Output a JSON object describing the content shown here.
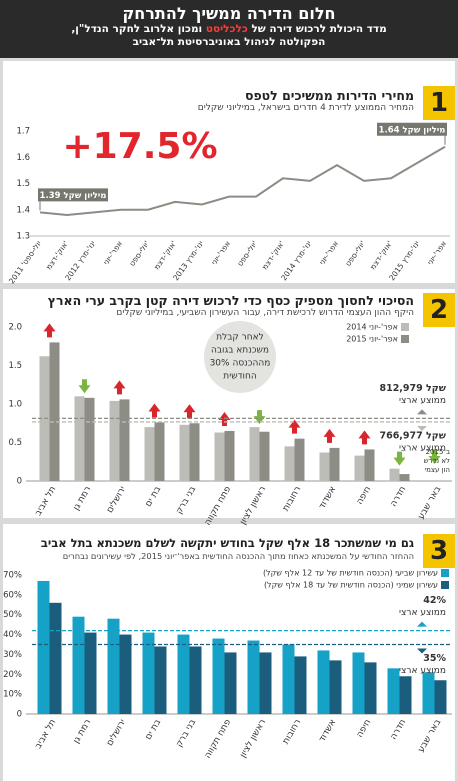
{
  "header": {
    "title": "חלום הדירה ממשיך להתרחק",
    "subtitle_before": "מדד היכולת לרכוש דירה של",
    "subtitle_brand": "כלכליסט",
    "subtitle_after": "ומכון אלרוב לחקר הנדל\"ן,",
    "subtitle_line2": "הפקולטה לניהול באוניברסיטת תל־אביב"
  },
  "chart_data": [
    {
      "type": "line",
      "panel_number": 1,
      "title": "מחירי הדירות ממשיכים לטפס",
      "subtitle": "המחיר הממוצע לדירת 4 חדרים בישראל, במיליוני שקלים",
      "categories": [
        "יולי-ספט' 2011",
        "אוק'-דצמ'",
        "ינו'-מרץ 2012",
        "אפר'-יוני",
        "יולי-ספט'",
        "אוק'-דצמ'",
        "ינו'-מרץ 2013",
        "אפר'-יוני",
        "יולי-ספט'",
        "אוק'-דצמ'",
        "ינו'-מרץ 2014",
        "אפר'-יוני",
        "יולי-ספט'",
        "אוק'-דצמ'",
        "ינו'-מרץ 2015",
        "אפר'-יוני"
      ],
      "values": [
        1.39,
        1.38,
        1.39,
        1.4,
        1.4,
        1.43,
        1.42,
        1.45,
        1.45,
        1.52,
        1.51,
        1.57,
        1.51,
        1.52,
        1.58,
        1.64
      ],
      "value_labels": [
        "1.39 מיליון שקל",
        null,
        null,
        null,
        null,
        null,
        null,
        null,
        null,
        null,
        null,
        null,
        null,
        null,
        null,
        "1.64 מיליון שקל"
      ],
      "color": "#8c8c84",
      "annotation": "+17.5%",
      "ylim": [
        1.3,
        1.7
      ],
      "yticks": [
        1.3,
        1.4,
        1.5,
        1.6,
        1.7
      ],
      "grid": false
    },
    {
      "type": "bar",
      "panel_number": 2,
      "title": "הסיכוי לחסוך מספיק כסף כדי לרכוש דירה קטן בקרב ערי הארץ",
      "subtitle": "היקף ההון העצמי הדרוש לרכישת דירה, עבור העשירון השביעי, במיליוני שקלים",
      "categories": [
        "תל אביב",
        "רמת גן",
        "ירושלים",
        "בת ים",
        "בני ברק",
        "פתח תקווה",
        "ראשון לציון",
        "רחובות",
        "אשדוד",
        "חיפה",
        "חדרה",
        "באר שבע"
      ],
      "series": [
        {
          "name": "אפר'-יוני 2014",
          "color": "#bdbdb7",
          "values": [
            1.62,
            1.1,
            1.04,
            0.7,
            0.73,
            0.63,
            0.7,
            0.45,
            0.37,
            0.33,
            0.16,
            null
          ]
        },
        {
          "name": "אפר'-יוני 2015",
          "color": "#8d8d86",
          "values": [
            1.8,
            1.08,
            1.06,
            0.76,
            0.75,
            0.65,
            0.64,
            0.55,
            0.43,
            0.41,
            0.09,
            null
          ]
        }
      ],
      "reference_lines": [
        {
          "value": 0.812979,
          "label": "812,979 שקל",
          "note": "ממוצע ארצי",
          "color": "#8d8d86"
        },
        {
          "value": 0.766977,
          "label": "766,977 שקל",
          "note": "ממוצע ארצי",
          "color": "#bdbdb7"
        }
      ],
      "callout": [
        "לאחר קבלת",
        "משכנתא בגובה",
        "30% מההכנסה",
        "החודשית"
      ],
      "note": [
        "ב־2015",
        "לא נדרש",
        "הון עצמי"
      ],
      "ylim": [
        0,
        2
      ],
      "yticks": [
        0,
        0.5,
        {
          "value": 1,
          "label": "1.0"
        },
        1.5,
        {
          "value": 2,
          "label": "2.0"
        }
      ],
      "grid": false
    },
    {
      "type": "bar",
      "panel_number": 3,
      "title": "גם מי שמשתכר 18 אלף שקל בחודש יתקשה לשלם משכנתא בתל אביב",
      "subtitle": "ההחזר החודשי על המשכנתא כאחוז מתוך ההכנסה החודשית באפר'־יוני 2015, לפי עשירונים נבחרים",
      "categories": [
        "תל אביב",
        "רמת גן",
        "ירושלים",
        "בת ים",
        "בני ברק",
        "פתח תקווה",
        "ראשון לציון",
        "רחובות",
        "אשדוד",
        "חיפה",
        "חדרה",
        "באר שבע"
      ],
      "series": [
        {
          "name": "עשירון שביעי (הכנסה חודשית של עד 12 אלף שקל)",
          "color": "#15a2c6",
          "values": [
            67,
            49,
            48,
            41,
            40,
            38,
            37,
            35,
            32,
            31,
            23,
            21
          ]
        },
        {
          "name": "עשירון שמיני (הכנסה חודשית של עד 18 אלף שקל)",
          "color": "#1b5d7d",
          "values": [
            56,
            41,
            40,
            34,
            34,
            31,
            31,
            29,
            27,
            26,
            19,
            17
          ]
        }
      ],
      "reference_lines": [
        {
          "value": 42,
          "label": "42%",
          "note": "ממוצע ארצי",
          "color": "#15a2c6"
        },
        {
          "value": 35,
          "label": "35%",
          "note": "ממוצע ארצי",
          "color": "#1b5d7d"
        }
      ],
      "ylim": [
        0,
        70
      ],
      "yticks": [
        0,
        {
          "value": 10,
          "label": "10%"
        },
        {
          "value": 20,
          "label": "20%"
        },
        {
          "value": 30,
          "label": "30%"
        },
        {
          "value": 40,
          "label": "40%"
        },
        {
          "value": 50,
          "label": "50%"
        },
        {
          "value": 60,
          "label": "60%"
        },
        {
          "value": 70,
          "label": "70%"
        }
      ],
      "grid": false
    }
  ]
}
